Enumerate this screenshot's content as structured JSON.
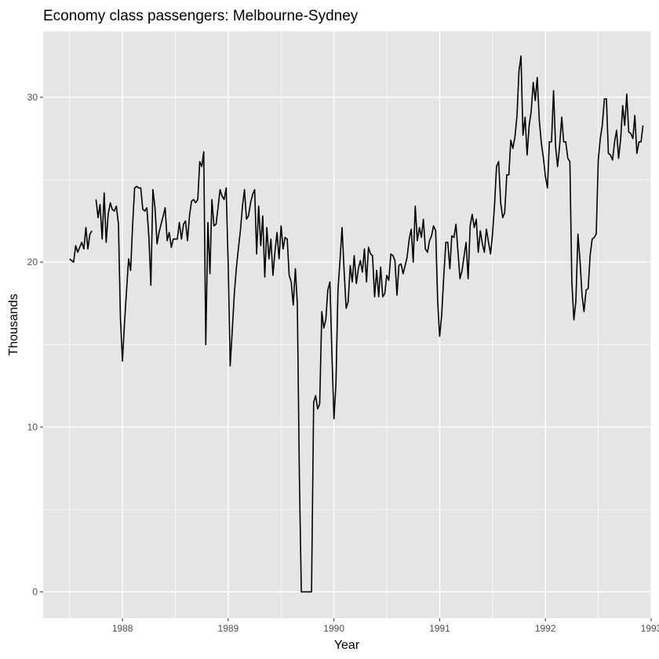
{
  "chart_data": {
    "type": "line",
    "title": "Economy class passengers: Melbourne-Sydney",
    "xlabel": "Year",
    "ylabel": "Thousands",
    "xlim": [
      1987.25,
      1993.0
    ],
    "ylim": [
      -1.6,
      34.0
    ],
    "x_ticks": [
      1988,
      1989,
      1990,
      1991,
      1992,
      1993
    ],
    "y_ticks": [
      0,
      10,
      20,
      30
    ],
    "grid": true,
    "background": "#e5e5e5",
    "line_color": "#000000",
    "series": [
      {
        "segments": [
          {
            "x": [
              1987.5,
              1987.519,
              1987.538,
              1987.558,
              1987.577,
              1987.596,
              1987.615,
              1987.635,
              1987.654,
              1987.673,
              1987.692,
              1987.712
            ],
            "y": [
              20.2,
              20.1,
              20.0,
              21.0,
              20.6,
              20.9,
              21.2,
              20.8,
              22.1,
              20.8,
              21.7,
              21.9
            ]
          },
          {
            "x": [
              1987.75,
              1987.769,
              1987.788,
              1987.808,
              1987.827,
              1987.846,
              1987.865,
              1987.885,
              1987.904,
              1987.923,
              1987.942,
              1987.962,
              1987.981,
              1988.0,
              1988.019,
              1988.038,
              1988.058,
              1988.077,
              1988.096,
              1988.115,
              1988.135,
              1988.154,
              1988.173,
              1988.192,
              1988.212,
              1988.231,
              1988.25,
              1988.269,
              1988.288,
              1988.308,
              1988.327,
              1988.346,
              1988.365,
              1988.385,
              1988.404,
              1988.423,
              1988.442,
              1988.462,
              1988.481,
              1988.5,
              1988.519,
              1988.538,
              1988.558,
              1988.577,
              1988.596,
              1988.615,
              1988.635,
              1988.654,
              1988.673,
              1988.692,
              1988.712,
              1988.731,
              1988.75,
              1988.769,
              1988.788,
              1988.808,
              1988.827,
              1988.846,
              1988.865,
              1988.885,
              1988.904,
              1988.923,
              1988.942,
              1988.962,
              1988.981,
              1989.0,
              1989.019,
              1989.038,
              1989.058,
              1989.077,
              1989.096,
              1989.115,
              1989.135,
              1989.154,
              1989.173,
              1989.192,
              1989.212,
              1989.231,
              1989.25,
              1989.269,
              1989.288,
              1989.308,
              1989.327,
              1989.346,
              1989.365,
              1989.385,
              1989.404,
              1989.423,
              1989.442,
              1989.462,
              1989.481,
              1989.5,
              1989.519,
              1989.538,
              1989.558,
              1989.577,
              1989.596,
              1989.615,
              1989.635,
              1989.654,
              1989.673,
              1989.692,
              1989.712,
              1989.731,
              1989.75,
              1989.769,
              1989.788,
              1989.808,
              1989.827,
              1989.846,
              1989.865,
              1989.885,
              1989.904,
              1989.923,
              1989.942,
              1989.962,
              1989.981,
              1990.0,
              1990.019,
              1990.038,
              1990.058,
              1990.077,
              1990.096,
              1990.115,
              1990.135,
              1990.154,
              1990.173,
              1990.192,
              1990.212,
              1990.231,
              1990.25,
              1990.269,
              1990.288,
              1990.308,
              1990.327,
              1990.346,
              1990.365,
              1990.385,
              1990.404,
              1990.423,
              1990.442,
              1990.462,
              1990.481,
              1990.5,
              1990.519,
              1990.538,
              1990.558,
              1990.577,
              1990.596,
              1990.615,
              1990.635,
              1990.654,
              1990.673,
              1990.692,
              1990.712,
              1990.731,
              1990.75,
              1990.769,
              1990.788,
              1990.808,
              1990.827,
              1990.846,
              1990.865,
              1990.885,
              1990.904,
              1990.923,
              1990.942,
              1990.962,
              1990.981,
              1991.0,
              1991.019,
              1991.038,
              1991.058,
              1991.077,
              1991.096,
              1991.115,
              1991.135,
              1991.154,
              1991.173,
              1991.192,
              1991.212,
              1991.231,
              1991.25,
              1991.269,
              1991.288,
              1991.308,
              1991.327,
              1991.346,
              1991.365,
              1991.385,
              1991.404,
              1991.423,
              1991.442,
              1991.462,
              1991.481,
              1991.5,
              1991.519,
              1991.538,
              1991.558,
              1991.577,
              1991.596,
              1991.615,
              1991.635,
              1991.654,
              1991.673,
              1991.692,
              1991.712,
              1991.731,
              1991.75,
              1991.769,
              1991.788,
              1991.808,
              1991.827,
              1991.846,
              1991.865,
              1991.885,
              1991.904,
              1991.923,
              1991.942,
              1991.962,
              1991.981,
              1992.0,
              1992.019,
              1992.038,
              1992.058,
              1992.077,
              1992.096,
              1992.115,
              1992.135,
              1992.154,
              1992.173,
              1992.192,
              1992.212,
              1992.231,
              1992.25,
              1992.269,
              1992.288,
              1992.308,
              1992.327,
              1992.346,
              1992.365,
              1992.385,
              1992.404,
              1992.423,
              1992.442,
              1992.462,
              1992.481,
              1992.5,
              1992.519,
              1992.538,
              1992.558,
              1992.577,
              1992.596,
              1992.615,
              1992.635,
              1992.654,
              1992.673,
              1992.692,
              1992.712,
              1992.731,
              1992.75,
              1992.769,
              1992.788,
              1992.808,
              1992.827,
              1992.846,
              1992.865,
              1992.885,
              1992.904,
              1992.923
            ],
            "y": [
              23.8,
              22.7,
              23.5,
              21.4,
              24.2,
              21.2,
              22.9,
              23.6,
              23.2,
              23.1,
              23.4,
              22.3,
              16.6,
              14.0,
              16.2,
              18.2,
              20.2,
              19.5,
              22.2,
              24.5,
              24.6,
              24.5,
              24.5,
              23.2,
              23.1,
              23.3,
              21.5,
              18.6,
              24.4,
              23.3,
              21.1,
              21.8,
              22.3,
              22.8,
              23.3,
              21.3,
              21.8,
              20.9,
              21.4,
              21.4,
              21.4,
              22.4,
              21.4,
              22.3,
              22.5,
              21.3,
              22.9,
              23.7,
              23.8,
              23.6,
              23.8,
              26.1,
              25.8,
              26.7,
              15.0,
              22.4,
              19.3,
              23.8,
              22.2,
              22.3,
              23.3,
              24.4,
              24.0,
              23.8,
              24.5,
              19.8,
              13.7,
              15.8,
              18.1,
              19.6,
              20.8,
              21.9,
              23.4,
              24.4,
              22.6,
              22.8,
              23.6,
              24.1,
              24.4,
              20.5,
              23.4,
              21.0,
              22.8,
              19.1,
              22.1,
              20.2,
              21.4,
              19.2,
              20.6,
              21.8,
              20.2,
              22.2,
              20.8,
              21.5,
              21.4,
              19.2,
              18.8,
              17.4,
              19.6,
              17.5,
              7.0,
              0.0,
              0.0,
              0.0,
              0.0,
              0.0,
              0.0,
              11.5,
              11.9,
              11.1,
              11.4,
              17.0,
              16.0,
              16.5,
              18.3,
              18.8,
              14.4,
              10.5,
              12.6,
              18.3,
              20.2,
              22.1,
              19.5,
              17.2,
              17.6,
              19.8,
              18.8,
              20.4,
              18.7,
              19.6,
              20.1,
              19.4,
              20.8,
              18.8,
              20.9,
              20.5,
              20.4,
              17.9,
              19.5,
              17.9,
              19.7,
              17.9,
              18.1,
              19.2,
              18.9,
              20.5,
              20.4,
              20.1,
              18.0,
              19.8,
              19.9,
              19.3,
              19.8,
              20.3,
              21.4,
              22.0,
              20.0,
              23.4,
              21.3,
              22.1,
              21.5,
              22.6,
              20.8,
              20.6,
              21.3,
              21.6,
              22.2,
              21.9,
              17.6,
              15.5,
              16.8,
              19.1,
              21.2,
              21.2,
              19.6,
              21.6,
              21.5,
              22.3,
              20.6,
              19.0,
              19.5,
              20.4,
              21.2,
              19.0,
              22.2,
              22.9,
              22.1,
              22.6,
              20.6,
              21.9,
              21.1,
              20.6,
              22.0,
              21.2,
              20.5,
              21.7,
              23.5,
              25.8,
              26.1,
              23.6,
              22.7,
              23.0,
              25.3,
              25.3,
              27.4,
              26.9,
              27.6,
              28.9,
              31.6,
              32.5,
              27.7,
              28.8,
              26.5,
              28.3,
              29.1,
              30.9,
              29.8,
              31.2,
              28.6,
              27.2,
              26.3,
              25.2,
              24.5,
              27.3,
              27.3,
              30.4,
              27.0,
              25.8,
              27.1,
              28.8,
              27.3,
              27.3,
              26.3,
              26.1,
              18.8,
              16.5,
              17.6,
              21.7,
              20.1,
              18.0,
              17.0,
              18.3,
              18.4,
              20.4,
              21.4,
              21.5,
              21.7,
              26.2,
              27.5,
              28.3,
              29.9,
              29.9,
              26.6,
              26.5,
              26.2,
              27.3,
              28.0,
              26.3,
              27.5,
              29.5,
              28.3,
              30.2,
              27.9,
              27.8,
              27.5,
              28.9,
              26.6,
              27.3,
              27.3,
              28.3
            ]
          }
        ]
      }
    ]
  }
}
